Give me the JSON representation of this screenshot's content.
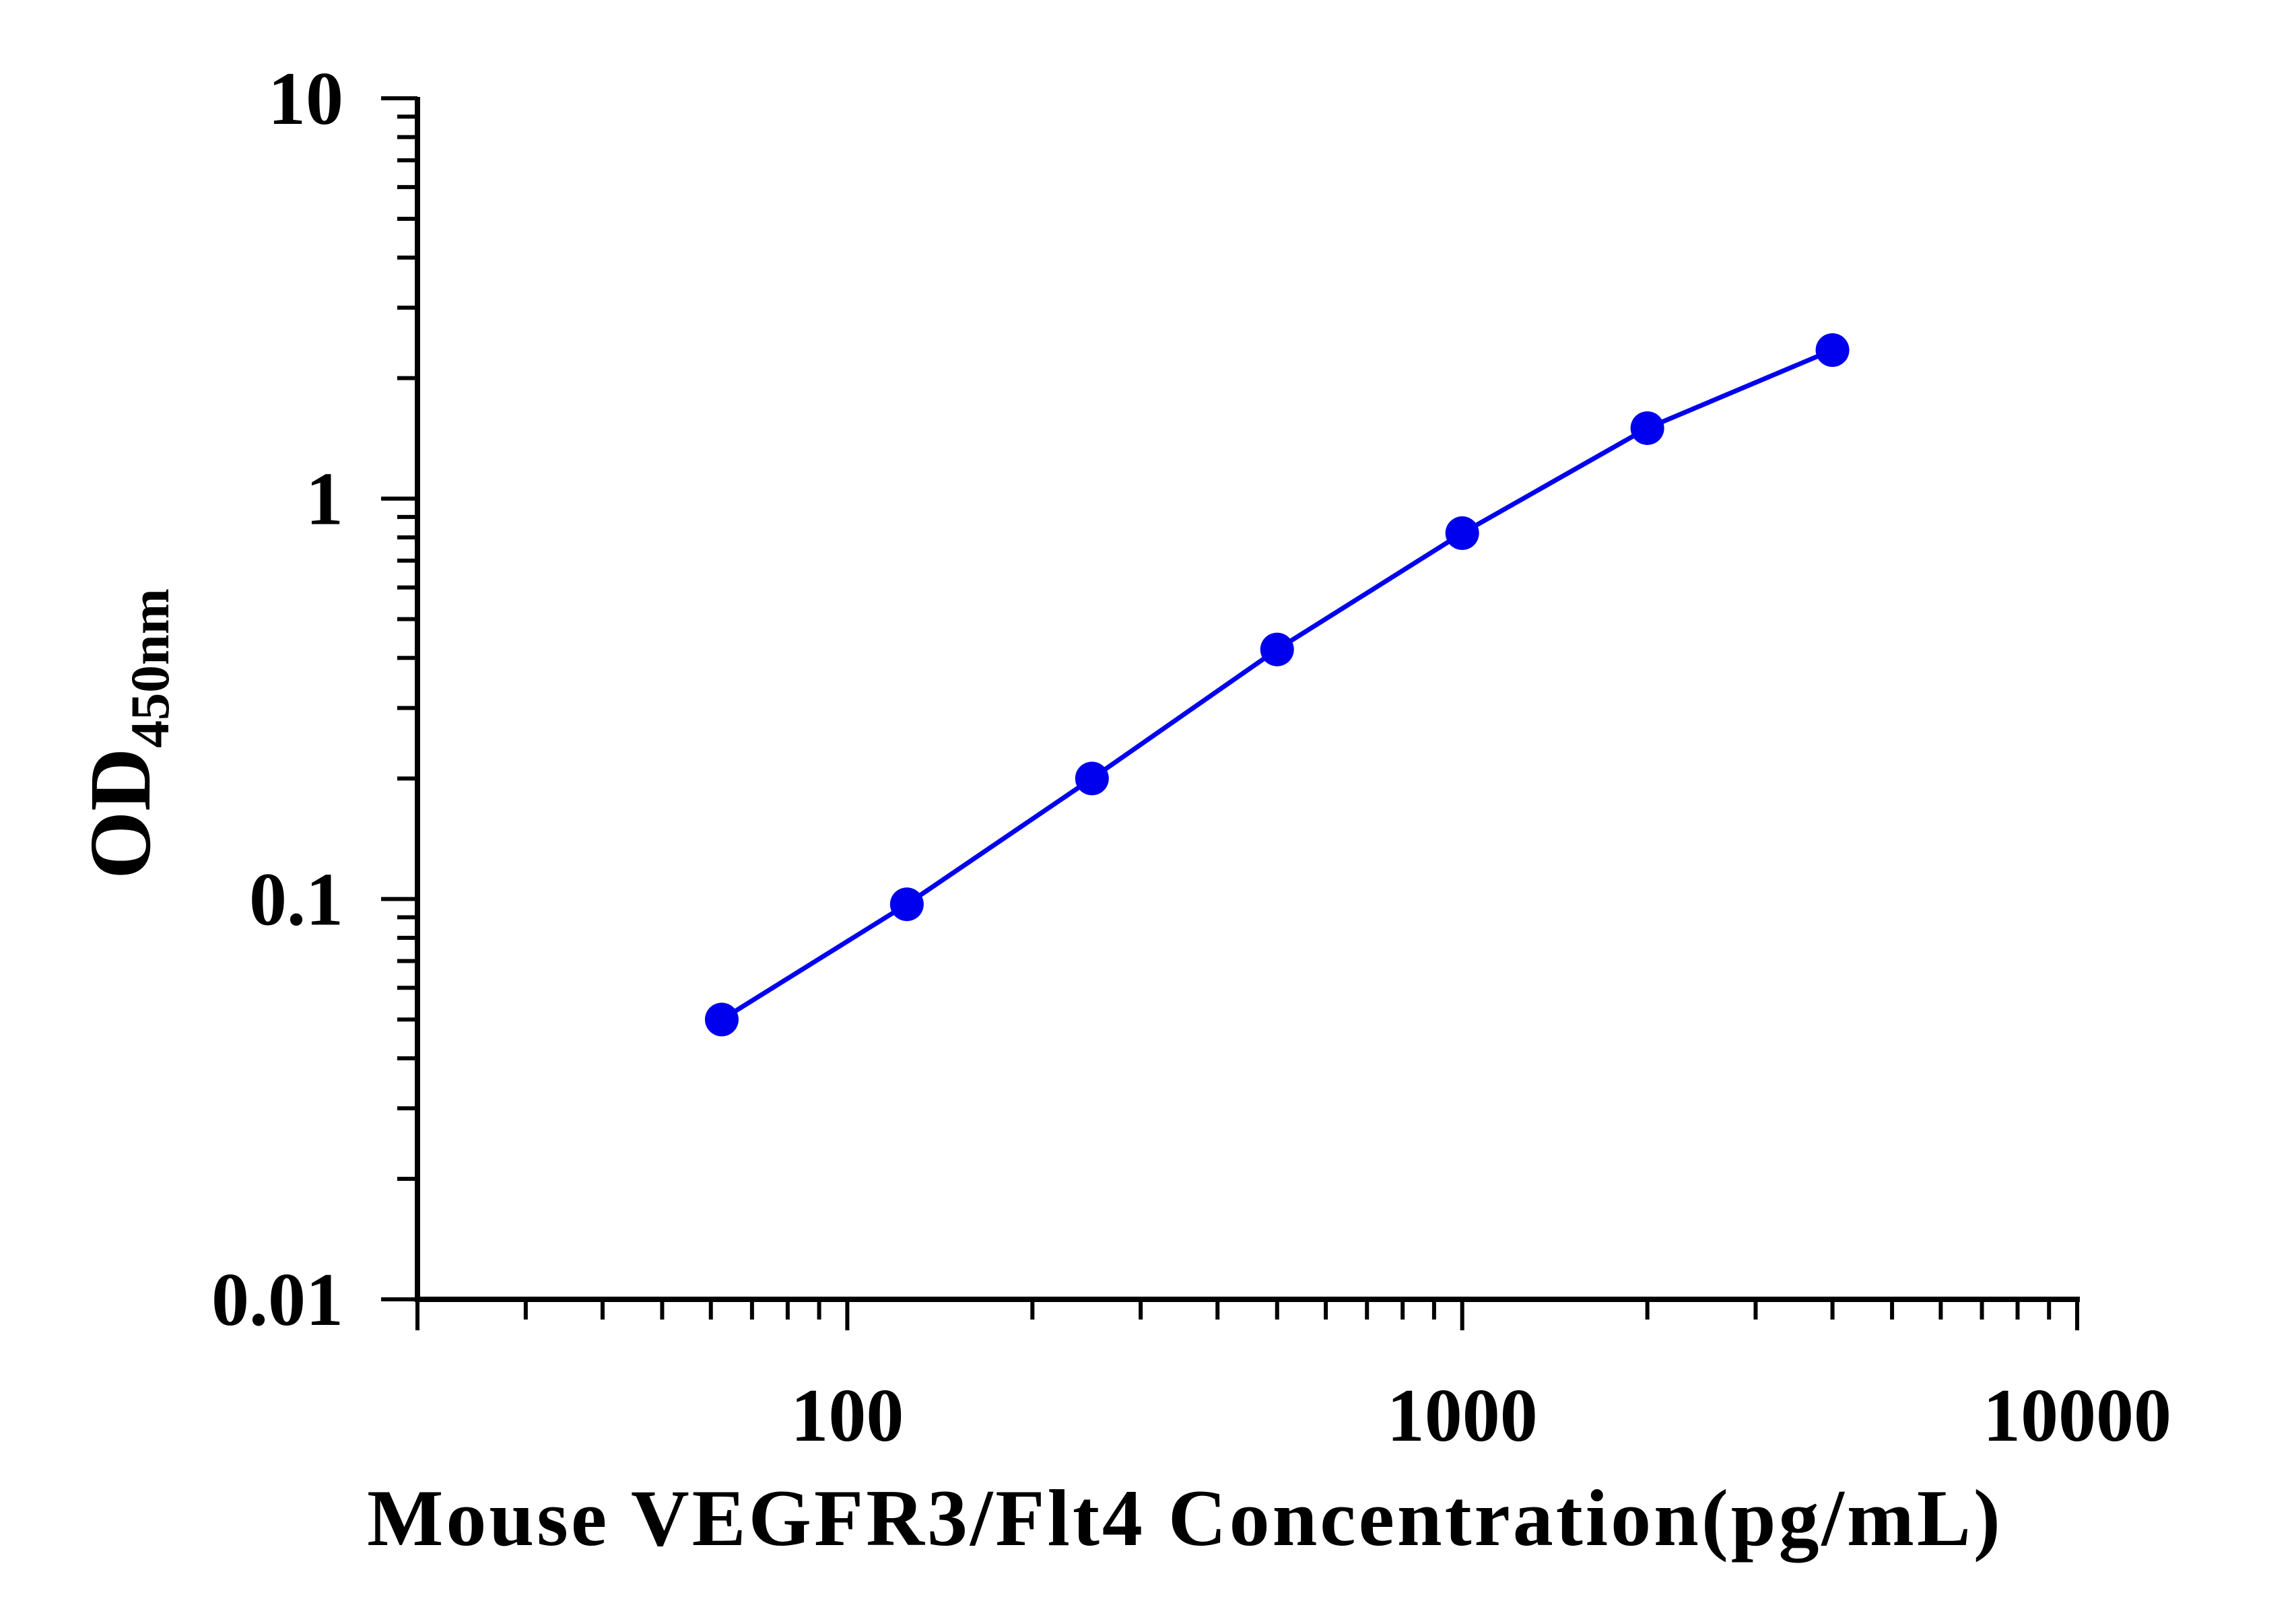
{
  "chart_data": {
    "type": "line",
    "scale": {
      "x": "log",
      "y": "log"
    },
    "xlabel": "Mouse VEGFR3/Flt4 Concentration(pg/mL)",
    "ylabel": {
      "main": "OD",
      "subscript": "450nm"
    },
    "xlim": [
      20,
      10000
    ],
    "ylim": [
      0.01,
      10
    ],
    "x_tick_labels": [
      {
        "value": 100,
        "label": "100"
      },
      {
        "value": 1000,
        "label": "1000"
      },
      {
        "value": 10000,
        "label": "10000"
      }
    ],
    "y_tick_labels": [
      {
        "value": 0.01,
        "label": "0.01"
      },
      {
        "value": 0.1,
        "label": "0.1"
      },
      {
        "value": 1,
        "label": "1"
      },
      {
        "value": 10,
        "label": "10"
      }
    ],
    "grid": false,
    "series": [
      {
        "color": "#0000ee",
        "marker": "circle",
        "points": [
          {
            "x": 62.5,
            "y": 0.05
          },
          {
            "x": 125,
            "y": 0.097
          },
          {
            "x": 250,
            "y": 0.2
          },
          {
            "x": 500,
            "y": 0.42
          },
          {
            "x": 1000,
            "y": 0.82
          },
          {
            "x": 2000,
            "y": 1.5
          },
          {
            "x": 4000,
            "y": 2.35
          }
        ]
      }
    ]
  }
}
